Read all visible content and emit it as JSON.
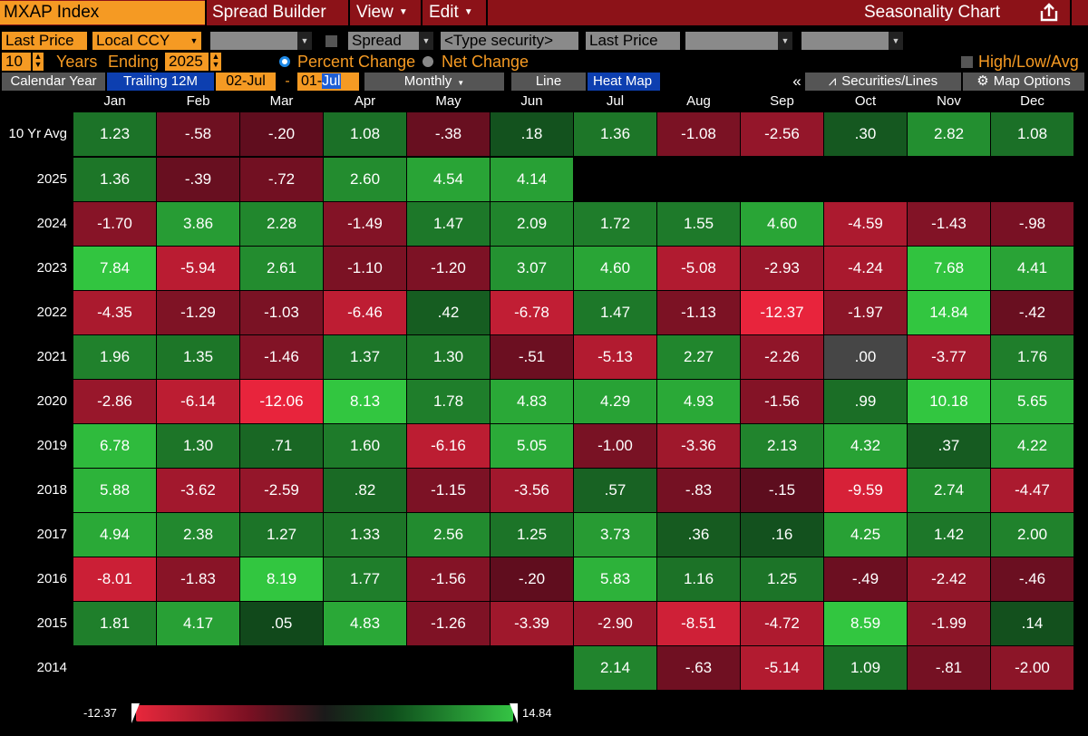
{
  "header": {
    "ticker": "MXAP Index",
    "menu": [
      "Spread Builder",
      "View",
      "Edit"
    ],
    "title": "Seasonality Chart",
    "colors": {
      "bar": "#8c1218",
      "accent": "#f59a23"
    }
  },
  "settings": {
    "price_field": "Last Price",
    "currency": "Local CCY",
    "spread": "Spread",
    "type_security": "<Type security>",
    "price_field_2": "Last Price",
    "years": "10",
    "years_label": "Years",
    "ending_label": "Ending",
    "ending_year": "2025",
    "percent_change": "Percent Change",
    "net_change": "Net Change",
    "high_low_avg": "High/Low/Avg"
  },
  "tabs": {
    "calendar_year": "Calendar Year",
    "trailing_12m": "Trailing 12M",
    "start_date": "02-Jul",
    "dash": "-",
    "end_prefix": "01-",
    "end_selected": "Jul",
    "period": "Monthly",
    "line": "Line",
    "heat_map": "Heat Map",
    "collapse": "«",
    "securities_lines": "Securities/Lines",
    "map_options": "Map Options"
  },
  "table": {
    "months": [
      "Jan",
      "Feb",
      "Mar",
      "Apr",
      "May",
      "Jun",
      "Jul",
      "Aug",
      "Sep",
      "Oct",
      "Nov",
      "Dec"
    ],
    "rows": [
      {
        "label": "10 Yr Avg",
        "cells": [
          {
            "t": "1.23",
            "v": 1.23
          },
          {
            "t": "-.58",
            "v": -0.58
          },
          {
            "t": "-.20",
            "v": -0.2
          },
          {
            "t": "1.08",
            "v": 1.08
          },
          {
            "t": "-.38",
            "v": -0.38
          },
          {
            "t": ".18",
            "v": 0.18
          },
          {
            "t": "1.36",
            "v": 1.36
          },
          {
            "t": "-1.08",
            "v": -1.08
          },
          {
            "t": "-2.56",
            "v": -2.56
          },
          {
            "t": ".30",
            "v": 0.3
          },
          {
            "t": "2.82",
            "v": 2.82
          },
          {
            "t": "1.08",
            "v": 1.08
          }
        ]
      },
      {
        "label": "2025",
        "cells": [
          {
            "t": "1.36",
            "v": 1.36
          },
          {
            "t": "-.39",
            "v": -0.39
          },
          {
            "t": "-.72",
            "v": -0.72
          },
          {
            "t": "2.60",
            "v": 2.6
          },
          {
            "t": "4.54",
            "v": 4.54
          },
          {
            "t": "4.14",
            "v": 4.14
          },
          null,
          null,
          null,
          null,
          null,
          null
        ]
      },
      {
        "label": "2024",
        "cells": [
          {
            "t": "-1.70",
            "v": -1.7
          },
          {
            "t": "3.86",
            "v": 3.86
          },
          {
            "t": "2.28",
            "v": 2.28
          },
          {
            "t": "-1.49",
            "v": -1.49
          },
          {
            "t": "1.47",
            "v": 1.47
          },
          {
            "t": "2.09",
            "v": 2.09
          },
          {
            "t": "1.72",
            "v": 1.72
          },
          {
            "t": "1.55",
            "v": 1.55
          },
          {
            "t": "4.60",
            "v": 4.6
          },
          {
            "t": "-4.59",
            "v": -4.59
          },
          {
            "t": "-1.43",
            "v": -1.43
          },
          {
            "t": "-.98",
            "v": -0.98
          }
        ]
      },
      {
        "label": "2023",
        "cells": [
          {
            "t": "7.84",
            "v": 7.84
          },
          {
            "t": "-5.94",
            "v": -5.94
          },
          {
            "t": "2.61",
            "v": 2.61
          },
          {
            "t": "-1.10",
            "v": -1.1
          },
          {
            "t": "-1.20",
            "v": -1.2
          },
          {
            "t": "3.07",
            "v": 3.07
          },
          {
            "t": "4.60",
            "v": 4.6
          },
          {
            "t": "-5.08",
            "v": -5.08
          },
          {
            "t": "-2.93",
            "v": -2.93
          },
          {
            "t": "-4.24",
            "v": -4.24
          },
          {
            "t": "7.68",
            "v": 7.68
          },
          {
            "t": "4.41",
            "v": 4.41
          }
        ]
      },
      {
        "label": "2022",
        "cells": [
          {
            "t": "-4.35",
            "v": -4.35
          },
          {
            "t": "-1.29",
            "v": -1.29
          },
          {
            "t": "-1.03",
            "v": -1.03
          },
          {
            "t": "-6.46",
            "v": -6.46
          },
          {
            "t": ".42",
            "v": 0.42
          },
          {
            "t": "-6.78",
            "v": -6.78
          },
          {
            "t": "1.47",
            "v": 1.47
          },
          {
            "t": "-1.13",
            "v": -1.13
          },
          {
            "t": "-12.37",
            "v": -12.37
          },
          {
            "t": "-1.97",
            "v": -1.97
          },
          {
            "t": "14.84",
            "v": 14.84
          },
          {
            "t": "-.42",
            "v": -0.42
          }
        ]
      },
      {
        "label": "2021",
        "cells": [
          {
            "t": "1.96",
            "v": 1.96
          },
          {
            "t": "1.35",
            "v": 1.35
          },
          {
            "t": "-1.46",
            "v": -1.46
          },
          {
            "t": "1.37",
            "v": 1.37
          },
          {
            "t": "1.30",
            "v": 1.3
          },
          {
            "t": "-.51",
            "v": -0.51
          },
          {
            "t": "-5.13",
            "v": -5.13
          },
          {
            "t": "2.27",
            "v": 2.27
          },
          {
            "t": "-2.26",
            "v": -2.26
          },
          {
            "t": ".00",
            "v": 0
          },
          {
            "t": "-3.77",
            "v": -3.77
          },
          {
            "t": "1.76",
            "v": 1.76
          }
        ]
      },
      {
        "label": "2020",
        "cells": [
          {
            "t": "-2.86",
            "v": -2.86
          },
          {
            "t": "-6.14",
            "v": -6.14
          },
          {
            "t": "-12.06",
            "v": -12.06
          },
          {
            "t": "8.13",
            "v": 8.13
          },
          {
            "t": "1.78",
            "v": 1.78
          },
          {
            "t": "4.83",
            "v": 4.83
          },
          {
            "t": "4.29",
            "v": 4.29
          },
          {
            "t": "4.93",
            "v": 4.93
          },
          {
            "t": "-1.56",
            "v": -1.56
          },
          {
            "t": ".99",
            "v": 0.99
          },
          {
            "t": "10.18",
            "v": 10.18
          },
          {
            "t": "5.65",
            "v": 5.65
          }
        ]
      },
      {
        "label": "2019",
        "cells": [
          {
            "t": "6.78",
            "v": 6.78
          },
          {
            "t": "1.30",
            "v": 1.3
          },
          {
            "t": ".71",
            "v": 0.71
          },
          {
            "t": "1.60",
            "v": 1.6
          },
          {
            "t": "-6.16",
            "v": -6.16
          },
          {
            "t": "5.05",
            "v": 5.05
          },
          {
            "t": "-1.00",
            "v": -1.0
          },
          {
            "t": "-3.36",
            "v": -3.36
          },
          {
            "t": "2.13",
            "v": 2.13
          },
          {
            "t": "4.32",
            "v": 4.32
          },
          {
            "t": ".37",
            "v": 0.37
          },
          {
            "t": "4.22",
            "v": 4.22
          }
        ]
      },
      {
        "label": "2018",
        "cells": [
          {
            "t": "5.88",
            "v": 5.88
          },
          {
            "t": "-3.62",
            "v": -3.62
          },
          {
            "t": "-2.59",
            "v": -2.59
          },
          {
            "t": ".82",
            "v": 0.82
          },
          {
            "t": "-1.15",
            "v": -1.15
          },
          {
            "t": "-3.56",
            "v": -3.56
          },
          {
            "t": ".57",
            "v": 0.57
          },
          {
            "t": "-.83",
            "v": -0.83
          },
          {
            "t": "-.15",
            "v": -0.15
          },
          {
            "t": "-9.59",
            "v": -9.59
          },
          {
            "t": "2.74",
            "v": 2.74
          },
          {
            "t": "-4.47",
            "v": -4.47
          }
        ]
      },
      {
        "label": "2017",
        "cells": [
          {
            "t": "4.94",
            "v": 4.94
          },
          {
            "t": "2.38",
            "v": 2.38
          },
          {
            "t": "1.27",
            "v": 1.27
          },
          {
            "t": "1.33",
            "v": 1.33
          },
          {
            "t": "2.56",
            "v": 2.56
          },
          {
            "t": "1.25",
            "v": 1.25
          },
          {
            "t": "3.73",
            "v": 3.73
          },
          {
            "t": ".36",
            "v": 0.36
          },
          {
            "t": ".16",
            "v": 0.16
          },
          {
            "t": "4.25",
            "v": 4.25
          },
          {
            "t": "1.42",
            "v": 1.42
          },
          {
            "t": "2.00",
            "v": 2.0
          }
        ]
      },
      {
        "label": "2016",
        "cells": [
          {
            "t": "-8.01",
            "v": -8.01
          },
          {
            "t": "-1.83",
            "v": -1.83
          },
          {
            "t": "8.19",
            "v": 8.19
          },
          {
            "t": "1.77",
            "v": 1.77
          },
          {
            "t": "-1.56",
            "v": -1.56
          },
          {
            "t": "-.20",
            "v": -0.2
          },
          {
            "t": "5.83",
            "v": 5.83
          },
          {
            "t": "1.16",
            "v": 1.16
          },
          {
            "t": "1.25",
            "v": 1.25
          },
          {
            "t": "-.49",
            "v": -0.49
          },
          {
            "t": "-2.42",
            "v": -2.42
          },
          {
            "t": "-.46",
            "v": -0.46
          }
        ]
      },
      {
        "label": "2015",
        "cells": [
          {
            "t": "1.81",
            "v": 1.81
          },
          {
            "t": "4.17",
            "v": 4.17
          },
          {
            "t": ".05",
            "v": 0.05
          },
          {
            "t": "4.83",
            "v": 4.83
          },
          {
            "t": "-1.26",
            "v": -1.26
          },
          {
            "t": "-3.39",
            "v": -3.39
          },
          {
            "t": "-2.90",
            "v": -2.9
          },
          {
            "t": "-8.51",
            "v": -8.51
          },
          {
            "t": "-4.72",
            "v": -4.72
          },
          {
            "t": "8.59",
            "v": 8.59
          },
          {
            "t": "-1.99",
            "v": -1.99
          },
          {
            "t": ".14",
            "v": 0.14
          }
        ]
      },
      {
        "label": "2014",
        "cells": [
          null,
          null,
          null,
          null,
          null,
          null,
          {
            "t": "2.14",
            "v": 2.14
          },
          {
            "t": "-.63",
            "v": -0.63
          },
          {
            "t": "-5.14",
            "v": -5.14
          },
          {
            "t": "1.09",
            "v": 1.09
          },
          {
            "t": "-.81",
            "v": -0.81
          },
          {
            "t": "-2.00",
            "v": -2.0
          }
        ]
      }
    ]
  },
  "legend": {
    "min_label": "-12.37",
    "max_label": "14.84",
    "min": -12.37,
    "max": 14.84
  }
}
